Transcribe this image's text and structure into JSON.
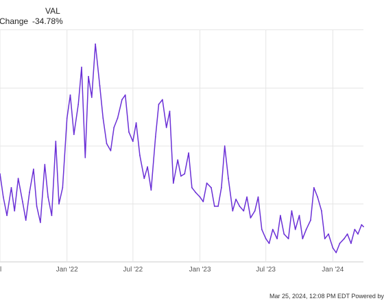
{
  "legend": {
    "header": "VAL",
    "row_label": "Change",
    "row_value": "-34.78%"
  },
  "footer": {
    "text": "Mar 25, 2024, 12:08 PM EDT Powered by"
  },
  "colors": {
    "series": "#6a2fd6",
    "grid": "#e5e5e5",
    "axis_text": "#555555"
  },
  "chart_data": {
    "type": "line",
    "title": "",
    "xlabel": "",
    "ylabel": "",
    "grid": true,
    "ylim": [
      -50,
      50
    ],
    "x_tick_labels": [
      {
        "date": "2021-07-01",
        "label": "l"
      },
      {
        "date": "2022-01-01",
        "label": "Jan '22"
      },
      {
        "date": "2022-07-01",
        "label": "Jul '22"
      },
      {
        "date": "2023-01-01",
        "label": "Jan '23"
      },
      {
        "date": "2023-07-01",
        "label": "Jul '23"
      },
      {
        "date": "2024-01-01",
        "label": "Jan '24"
      }
    ],
    "x_range": [
      "2021-07-01",
      "2024-03-25"
    ],
    "series": [
      {
        "name": "VAL",
        "x": [
          "2021-07-01",
          "2021-07-10",
          "2021-07-20",
          "2021-08-01",
          "2021-08-10",
          "2021-08-20",
          "2021-09-01",
          "2021-09-10",
          "2021-09-20",
          "2021-10-01",
          "2021-10-10",
          "2021-10-20",
          "2021-11-01",
          "2021-11-10",
          "2021-11-20",
          "2021-12-01",
          "2021-12-10",
          "2021-12-20",
          "2022-01-01",
          "2022-01-10",
          "2022-01-20",
          "2022-02-01",
          "2022-02-10",
          "2022-02-20",
          "2022-03-01",
          "2022-03-10",
          "2022-03-20",
          "2022-04-01",
          "2022-04-10",
          "2022-04-20",
          "2022-05-01",
          "2022-05-10",
          "2022-05-20",
          "2022-06-01",
          "2022-06-10",
          "2022-06-20",
          "2022-07-01",
          "2022-07-10",
          "2022-07-20",
          "2022-08-01",
          "2022-08-10",
          "2022-08-20",
          "2022-09-01",
          "2022-09-10",
          "2022-09-20",
          "2022-10-01",
          "2022-10-10",
          "2022-10-20",
          "2022-11-01",
          "2022-11-10",
          "2022-11-20",
          "2022-12-01",
          "2022-12-10",
          "2022-12-20",
          "2023-01-01",
          "2023-01-10",
          "2023-01-20",
          "2023-02-01",
          "2023-02-10",
          "2023-02-20",
          "2023-03-01",
          "2023-03-10",
          "2023-03-20",
          "2023-04-01",
          "2023-04-10",
          "2023-04-20",
          "2023-05-01",
          "2023-05-10",
          "2023-05-20",
          "2023-06-01",
          "2023-06-10",
          "2023-06-20",
          "2023-07-01",
          "2023-07-10",
          "2023-07-20",
          "2023-08-01",
          "2023-08-10",
          "2023-08-20",
          "2023-09-01",
          "2023-09-10",
          "2023-09-20",
          "2023-10-01",
          "2023-10-10",
          "2023-10-20",
          "2023-11-01",
          "2023-11-10",
          "2023-11-20",
          "2023-12-01",
          "2023-12-10",
          "2023-12-20",
          "2024-01-01",
          "2024-01-10",
          "2024-01-20",
          "2024-02-01",
          "2024-02-10",
          "2024-02-20",
          "2024-03-01",
          "2024-03-10",
          "2024-03-20",
          "2024-03-25"
        ],
        "values": [
          -12,
          -22,
          -30,
          -18,
          -28,
          -14,
          -24,
          -32,
          -20,
          -10,
          -26,
          -33,
          -8,
          -22,
          -30,
          2,
          -25,
          -18,
          12,
          22,
          5,
          18,
          34,
          -5,
          30,
          21,
          44,
          26,
          12,
          1,
          -2,
          8,
          12,
          20,
          22,
          6,
          2,
          10,
          -4,
          -14,
          -9,
          -19,
          4,
          18,
          20,
          8,
          15,
          -16,
          -6,
          -13,
          -12,
          -3,
          -18,
          -20,
          -22,
          -24,
          -16,
          -18,
          -26,
          -26,
          -18,
          0,
          -14,
          -28,
          -23,
          -26,
          -28,
          -22,
          -31,
          -28,
          -22,
          -36,
          -40,
          -42,
          -36,
          -40,
          -30,
          -38,
          -40,
          -28,
          -36,
          -30,
          -40,
          -36,
          -32,
          -18,
          -22,
          -28,
          -40,
          -38,
          -44,
          -46,
          -42,
          -40,
          -38,
          -42,
          -36,
          -38,
          -34,
          -34.78
        ]
      }
    ]
  }
}
